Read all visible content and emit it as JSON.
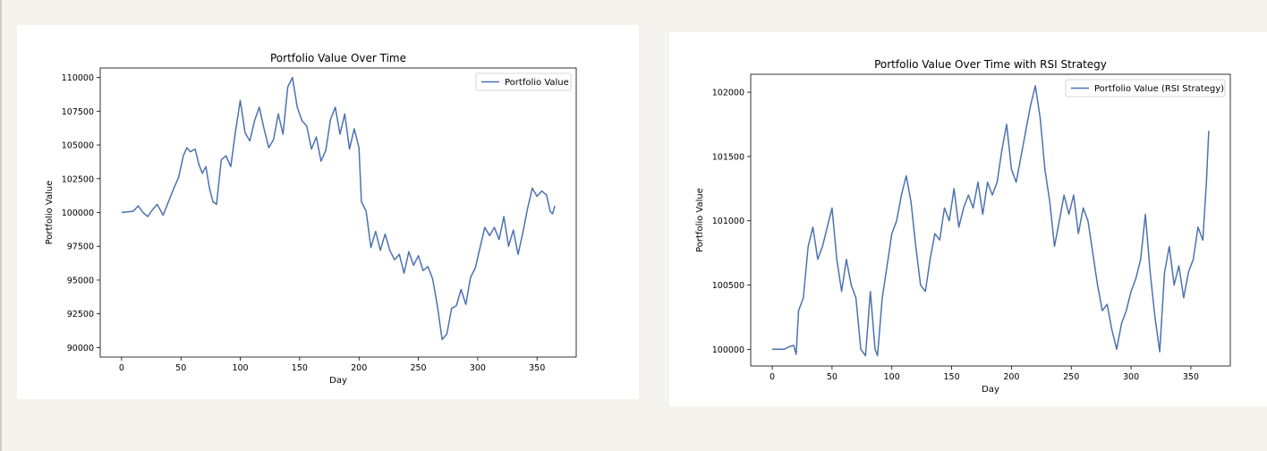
{
  "chart_data": [
    {
      "type": "line",
      "title": "Portfolio Value Over Time",
      "xlabel": "Day",
      "ylabel": "Portfolio Value",
      "xlim": [
        -18,
        383
      ],
      "ylim": [
        89300,
        110700
      ],
      "xticks": [
        "0",
        "50",
        "100",
        "150",
        "200",
        "250",
        "300",
        "350"
      ],
      "yticks": [
        "90000",
        "92500",
        "95000",
        "97500",
        "100000",
        "102500",
        "105000",
        "107500",
        "110000"
      ],
      "grid": false,
      "legend": "upper-right",
      "color": "#4c72b0",
      "series": [
        {
          "name": "Portfolio Value",
          "points": [
            [
              0,
              100000
            ],
            [
              10,
              100100
            ],
            [
              14,
              100500
            ],
            [
              18,
              100000
            ],
            [
              22,
              99700
            ],
            [
              26,
              100200
            ],
            [
              30,
              100600
            ],
            [
              35,
              99800
            ],
            [
              40,
              100900
            ],
            [
              44,
              101800
            ],
            [
              48,
              102600
            ],
            [
              52,
              104200
            ],
            [
              55,
              104800
            ],
            [
              58,
              104500
            ],
            [
              62,
              104700
            ],
            [
              65,
              103600
            ],
            [
              68,
              102900
            ],
            [
              71,
              103400
            ],
            [
              74,
              101800
            ],
            [
              77,
              100800
            ],
            [
              80,
              100600
            ],
            [
              84,
              103900
            ],
            [
              88,
              104200
            ],
            [
              92,
              103400
            ],
            [
              96,
              106000
            ],
            [
              100,
              108300
            ],
            [
              104,
              105900
            ],
            [
              108,
              105300
            ],
            [
              112,
              106800
            ],
            [
              116,
              107800
            ],
            [
              120,
              106200
            ],
            [
              124,
              104800
            ],
            [
              128,
              105400
            ],
            [
              132,
              107300
            ],
            [
              136,
              105800
            ],
            [
              140,
              109300
            ],
            [
              144,
              110000
            ],
            [
              148,
              107800
            ],
            [
              152,
              106800
            ],
            [
              156,
              106400
            ],
            [
              160,
              104700
            ],
            [
              164,
              105600
            ],
            [
              168,
              103800
            ],
            [
              172,
              104600
            ],
            [
              176,
              106900
            ],
            [
              180,
              107800
            ],
            [
              184,
              105800
            ],
            [
              188,
              107300
            ],
            [
              192,
              104700
            ],
            [
              196,
              106200
            ],
            [
              200,
              104800
            ],
            [
              202,
              100800
            ],
            [
              206,
              100100
            ],
            [
              210,
              97400
            ],
            [
              214,
              98600
            ],
            [
              218,
              97200
            ],
            [
              222,
              98400
            ],
            [
              226,
              97200
            ],
            [
              230,
              96500
            ],
            [
              234,
              96900
            ],
            [
              238,
              95500
            ],
            [
              242,
              97100
            ],
            [
              246,
              96100
            ],
            [
              250,
              96800
            ],
            [
              254,
              95700
            ],
            [
              258,
              96000
            ],
            [
              262,
              95100
            ],
            [
              266,
              93100
            ],
            [
              270,
              90600
            ],
            [
              274,
              91000
            ],
            [
              278,
              92900
            ],
            [
              282,
              93100
            ],
            [
              286,
              94300
            ],
            [
              290,
              93200
            ],
            [
              294,
              95200
            ],
            [
              298,
              95900
            ],
            [
              302,
              97400
            ],
            [
              306,
              98900
            ],
            [
              310,
              98300
            ],
            [
              314,
              98900
            ],
            [
              318,
              98000
            ],
            [
              322,
              99700
            ],
            [
              326,
              97500
            ],
            [
              330,
              98700
            ],
            [
              334,
              96900
            ],
            [
              338,
              98500
            ],
            [
              342,
              100300
            ],
            [
              346,
              101800
            ],
            [
              350,
              101200
            ],
            [
              354,
              101600
            ],
            [
              358,
              101300
            ],
            [
              361,
              100100
            ],
            [
              363,
              99900
            ],
            [
              365,
              100500
            ]
          ]
        }
      ]
    },
    {
      "type": "line",
      "title": "Portfolio Value Over Time with RSI Strategy",
      "xlabel": "Day",
      "ylabel": "Portfolio Value",
      "xlim": [
        -18,
        383
      ],
      "ylim": [
        99870,
        102140
      ],
      "xticks": [
        "0",
        "50",
        "100",
        "150",
        "200",
        "250",
        "300",
        "350"
      ],
      "yticks": [
        "100000",
        "100500",
        "101000",
        "101500",
        "102000"
      ],
      "grid": false,
      "legend": "upper-right",
      "color": "#4c72b0",
      "series": [
        {
          "name": "Portfolio Value (RSI Strategy)",
          "points": [
            [
              0,
              100000
            ],
            [
              10,
              100000
            ],
            [
              14,
              100020
            ],
            [
              18,
              100030
            ],
            [
              20,
              99960
            ],
            [
              22,
              100300
            ],
            [
              26,
              100400
            ],
            [
              30,
              100800
            ],
            [
              34,
              100950
            ],
            [
              38,
              100700
            ],
            [
              42,
              100800
            ],
            [
              46,
              100950
            ],
            [
              50,
              101100
            ],
            [
              54,
              100700
            ],
            [
              58,
              100450
            ],
            [
              62,
              100700
            ],
            [
              66,
              100500
            ],
            [
              70,
              100400
            ],
            [
              74,
              100000
            ],
            [
              78,
              99950
            ],
            [
              82,
              100450
            ],
            [
              86,
              100000
            ],
            [
              88,
              99950
            ],
            [
              92,
              100400
            ],
            [
              96,
              100650
            ],
            [
              100,
              100900
            ],
            [
              104,
              101000
            ],
            [
              108,
              101200
            ],
            [
              112,
              101350
            ],
            [
              116,
              101150
            ],
            [
              120,
              100800
            ],
            [
              124,
              100500
            ],
            [
              128,
              100450
            ],
            [
              132,
              100700
            ],
            [
              136,
              100900
            ],
            [
              140,
              100850
            ],
            [
              144,
              101100
            ],
            [
              148,
              101000
            ],
            [
              152,
              101250
            ],
            [
              156,
              100950
            ],
            [
              160,
              101100
            ],
            [
              164,
              101200
            ],
            [
              168,
              101100
            ],
            [
              172,
              101300
            ],
            [
              176,
              101050
            ],
            [
              180,
              101300
            ],
            [
              184,
              101200
            ],
            [
              188,
              101300
            ],
            [
              192,
              101550
            ],
            [
              196,
              101750
            ],
            [
              200,
              101400
            ],
            [
              204,
              101300
            ],
            [
              208,
              101500
            ],
            [
              212,
              101700
            ],
            [
              216,
              101900
            ],
            [
              220,
              102050
            ],
            [
              224,
              101800
            ],
            [
              228,
              101400
            ],
            [
              232,
              101150
            ],
            [
              236,
              100800
            ],
            [
              240,
              101000
            ],
            [
              244,
              101200
            ],
            [
              248,
              101050
            ],
            [
              252,
              101200
            ],
            [
              256,
              100900
            ],
            [
              260,
              101100
            ],
            [
              264,
              101000
            ],
            [
              268,
              100750
            ],
            [
              272,
              100500
            ],
            [
              276,
              100300
            ],
            [
              280,
              100350
            ],
            [
              284,
              100150
            ],
            [
              288,
              100000
            ],
            [
              292,
              100200
            ],
            [
              296,
              100300
            ],
            [
              300,
              100450
            ],
            [
              304,
              100550
            ],
            [
              308,
              100700
            ],
            [
              312,
              101050
            ],
            [
              316,
              100600
            ],
            [
              320,
              100250
            ],
            [
              324,
              99980
            ],
            [
              328,
              100600
            ],
            [
              332,
              100800
            ],
            [
              336,
              100500
            ],
            [
              340,
              100650
            ],
            [
              344,
              100400
            ],
            [
              348,
              100600
            ],
            [
              352,
              100700
            ],
            [
              356,
              100950
            ],
            [
              360,
              100850
            ],
            [
              363,
              101300
            ],
            [
              365,
              101700
            ]
          ]
        }
      ]
    }
  ]
}
